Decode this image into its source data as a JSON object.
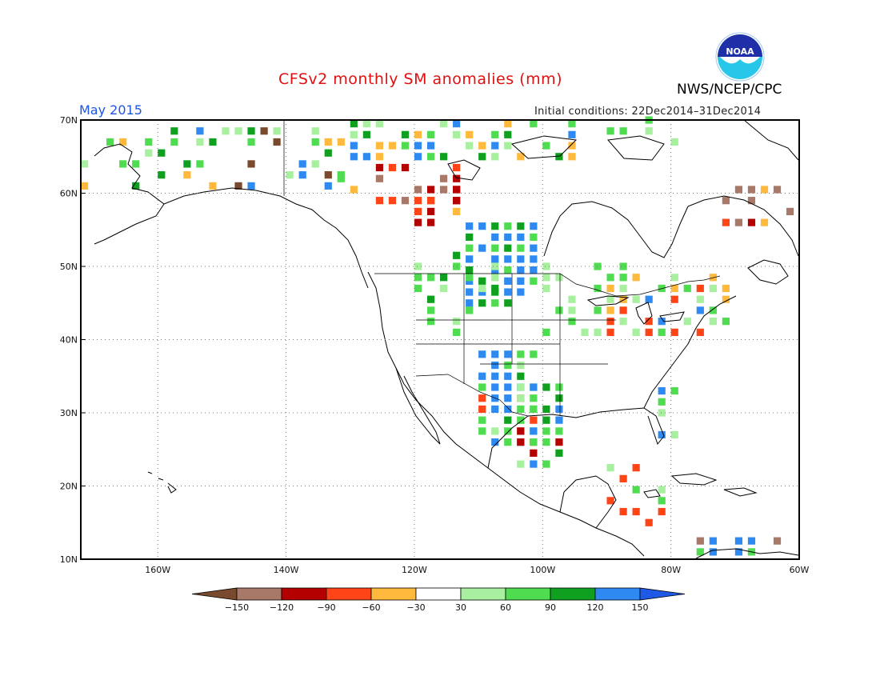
{
  "header": {
    "title": "CFSv2 monthly SM anomalies (mm)",
    "period": "May 2015",
    "initial_conditions": "Initial conditions: 22Dec2014–31Dec2014",
    "agency": "NWS/NCEP/CPC",
    "logo_text": "NOAA"
  },
  "map": {
    "lat_labels": [
      "70N",
      "60N",
      "50N",
      "40N",
      "30N",
      "20N",
      "10N"
    ],
    "lon_labels": [
      "160W",
      "140W",
      "120W",
      "100W",
      "80W",
      "60W"
    ],
    "lat_range": [
      10,
      70
    ],
    "lon_range": [
      -172,
      -60
    ],
    "grid": "dotted"
  },
  "colorbar": {
    "tick_labels": [
      "−150",
      "−120",
      "−90",
      "−60",
      "−30",
      "30",
      "60",
      "90",
      "120",
      "150"
    ],
    "colors": [
      "#7a4a2e",
      "#a87868",
      "#b40000",
      "#ff4418",
      "#ffb93c",
      "#ffffff",
      "#a8f0a0",
      "#50dc50",
      "#10a020",
      "#2e8af0",
      "#1e5ae6"
    ]
  }
}
